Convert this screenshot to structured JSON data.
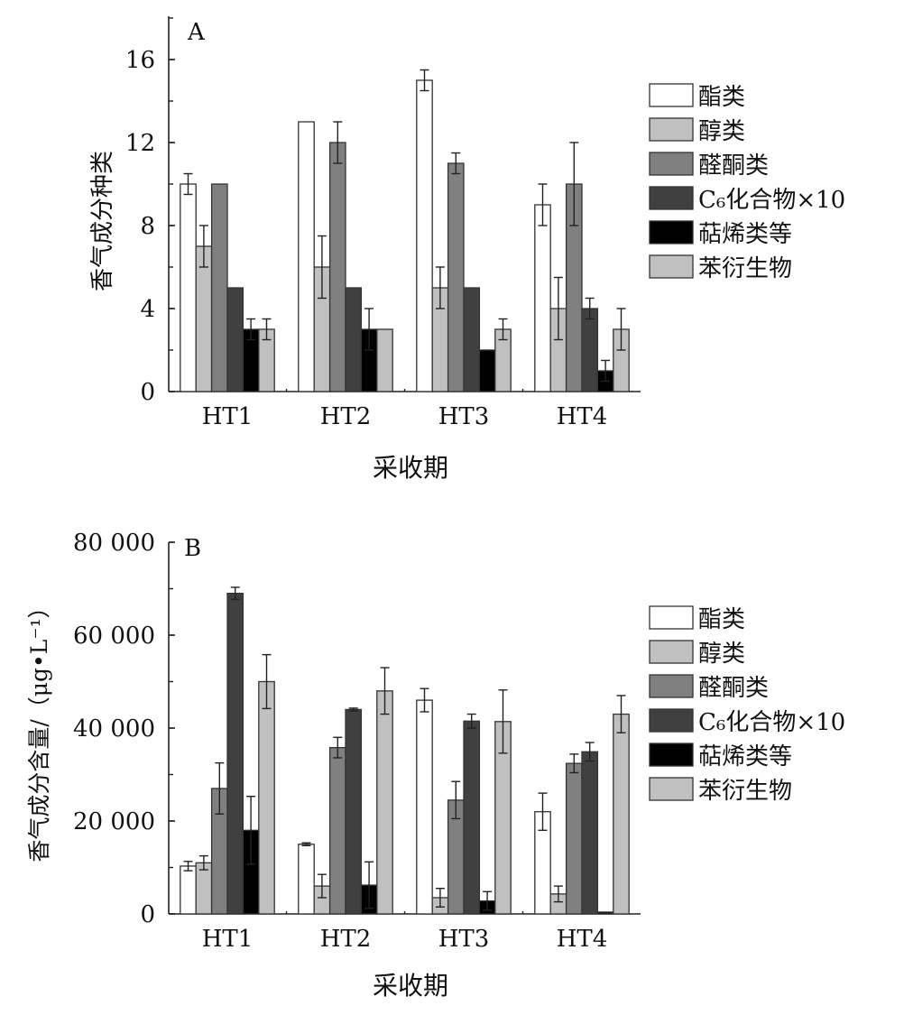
{
  "chart_data": [
    {
      "type": "bar",
      "panel_label": "A",
      "title": "",
      "xlabel": "采收期",
      "ylabel": "香气成分种类",
      "ylim": [
        0,
        18
      ],
      "yticks": [
        0,
        4,
        8,
        12,
        16
      ],
      "ytick_labels": [
        "0",
        "4",
        "8",
        "12",
        "16"
      ],
      "categories": [
        "HT1",
        "HT2",
        "HT3",
        "HT4"
      ],
      "legend_position": "right",
      "series": [
        {
          "name": "酯类",
          "color": "#ffffff",
          "values": [
            10,
            13,
            15,
            9
          ],
          "errors": [
            0.5,
            0,
            0.5,
            1
          ]
        },
        {
          "name": "醇类",
          "color": "#c0c0c0",
          "values": [
            7,
            6,
            5,
            4
          ],
          "errors": [
            1,
            1.5,
            1,
            1.5
          ]
        },
        {
          "name": "醛酮类",
          "color": "#808080",
          "values": [
            10,
            12,
            11,
            10
          ],
          "errors": [
            0,
            1,
            0.5,
            2
          ]
        },
        {
          "name": "C₆化合物×10",
          "color": "#404040",
          "values": [
            5,
            5,
            5,
            4
          ],
          "errors": [
            0,
            0,
            0,
            0.5
          ]
        },
        {
          "name": "萜烯类等",
          "color": "#000000",
          "values": [
            3,
            3,
            2,
            1
          ],
          "errors": [
            0.5,
            1,
            0,
            0.5
          ]
        },
        {
          "name": "苯衍生物",
          "color": "#c0c0c0",
          "values": [
            3,
            3,
            3,
            3
          ],
          "errors": [
            0.5,
            0,
            0.5,
            1
          ]
        }
      ]
    },
    {
      "type": "bar",
      "panel_label": "B",
      "title": "",
      "xlabel": "采收期",
      "ylabel": "香气成分含量/（μg•L⁻¹）",
      "ylim": [
        0,
        80000
      ],
      "yticks": [
        0,
        20000,
        40000,
        60000,
        80000
      ],
      "ytick_labels": [
        "0",
        "20 000",
        "40 000",
        "60 000",
        "80 000"
      ],
      "categories": [
        "HT1",
        "HT2",
        "HT3",
        "HT4"
      ],
      "legend_position": "right",
      "series": [
        {
          "name": "酯类",
          "color": "#ffffff",
          "values": [
            10300,
            15000,
            46000,
            22000
          ],
          "errors": [
            1000,
            300,
            2500,
            4000
          ]
        },
        {
          "name": "醇类",
          "color": "#c0c0c0",
          "values": [
            11000,
            6000,
            3500,
            4300
          ],
          "errors": [
            1500,
            2500,
            2000,
            1700
          ]
        },
        {
          "name": "醛酮类",
          "color": "#808080",
          "values": [
            27000,
            35800,
            24500,
            32400
          ],
          "errors": [
            5500,
            2200,
            4000,
            2000
          ]
        },
        {
          "name": "C₆化合物×10",
          "color": "#404040",
          "values": [
            69000,
            44000,
            41500,
            34900
          ],
          "errors": [
            1300,
            300,
            1500,
            2000
          ]
        },
        {
          "name": "萜烯类等",
          "color": "#000000",
          "values": [
            18000,
            6200,
            2800,
            400
          ],
          "errors": [
            7300,
            5000,
            2000,
            0
          ]
        },
        {
          "name": "苯衍生物",
          "color": "#c0c0c0",
          "values": [
            50000,
            48000,
            41400,
            43000
          ],
          "errors": [
            5800,
            5000,
            6800,
            4000
          ]
        }
      ]
    }
  ]
}
